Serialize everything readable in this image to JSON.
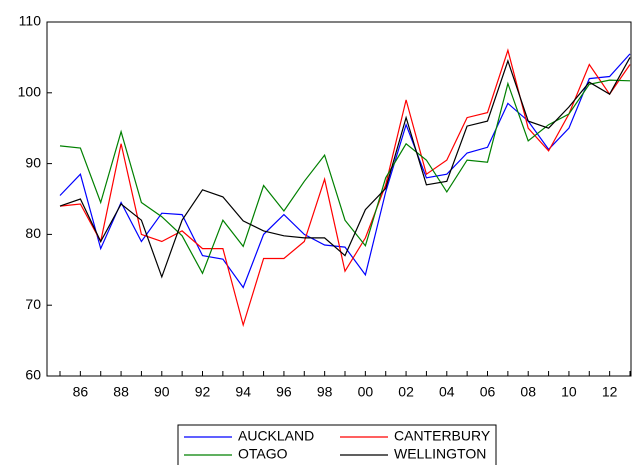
{
  "chart_data": {
    "type": "line",
    "categories": [
      null,
      "86",
      null,
      "88",
      null,
      "90",
      null,
      "92",
      null,
      "94",
      null,
      "96",
      null,
      "98",
      null,
      "00",
      null,
      "02",
      null,
      "04",
      null,
      "06",
      null,
      "08",
      null,
      "10",
      null,
      "12",
      null
    ],
    "series": [
      {
        "name": "AUCKLAND",
        "color": "#0000ff",
        "values": [
          85.5,
          88.5,
          78,
          84.5,
          79,
          83,
          82.8,
          77,
          76.5,
          72.5,
          80,
          82.8,
          80,
          78.5,
          78.2,
          74.3,
          86,
          95.5,
          88,
          88.5,
          91.5,
          92.3,
          98.5,
          96,
          92,
          95,
          102,
          102.3,
          105.5
        ]
      },
      {
        "name": "CANTERBURY",
        "color": "#ff0000",
        "values": [
          84,
          84.3,
          79,
          92.8,
          80,
          79,
          80.5,
          78,
          78,
          67.2,
          76.6,
          76.6,
          79,
          87.8,
          74.8,
          79.5,
          87,
          99,
          88.5,
          90.5,
          96.5,
          97.2,
          106,
          95,
          91.8,
          97,
          104,
          99.8,
          104
        ]
      },
      {
        "name": "OTAGO",
        "color": "#008000",
        "values": [
          92.5,
          92.2,
          84.5,
          94.5,
          84.5,
          82.5,
          79.8,
          74.5,
          82,
          78.3,
          86.9,
          83.3,
          87.5,
          91.2,
          82,
          78.4,
          88,
          92.8,
          90.5,
          86,
          90.5,
          90.2,
          101.3,
          93.2,
          95.5,
          97,
          101.2,
          101.8,
          101.7
        ]
      },
      {
        "name": "WELLINGTON",
        "color": "#000000",
        "values": [
          84,
          85,
          79,
          84.3,
          82,
          74,
          82,
          86.3,
          85.3,
          81.9,
          80.5,
          79.8,
          79.5,
          79.5,
          77,
          83.5,
          86.5,
          96.5,
          87,
          87.5,
          95.3,
          96,
          104.5,
          96,
          95,
          98,
          101.5,
          99.8,
          105
        ]
      }
    ],
    "ylim": [
      60,
      110
    ],
    "yticks": [
      60,
      70,
      80,
      90,
      100,
      110
    ],
    "legend": "bottom"
  }
}
